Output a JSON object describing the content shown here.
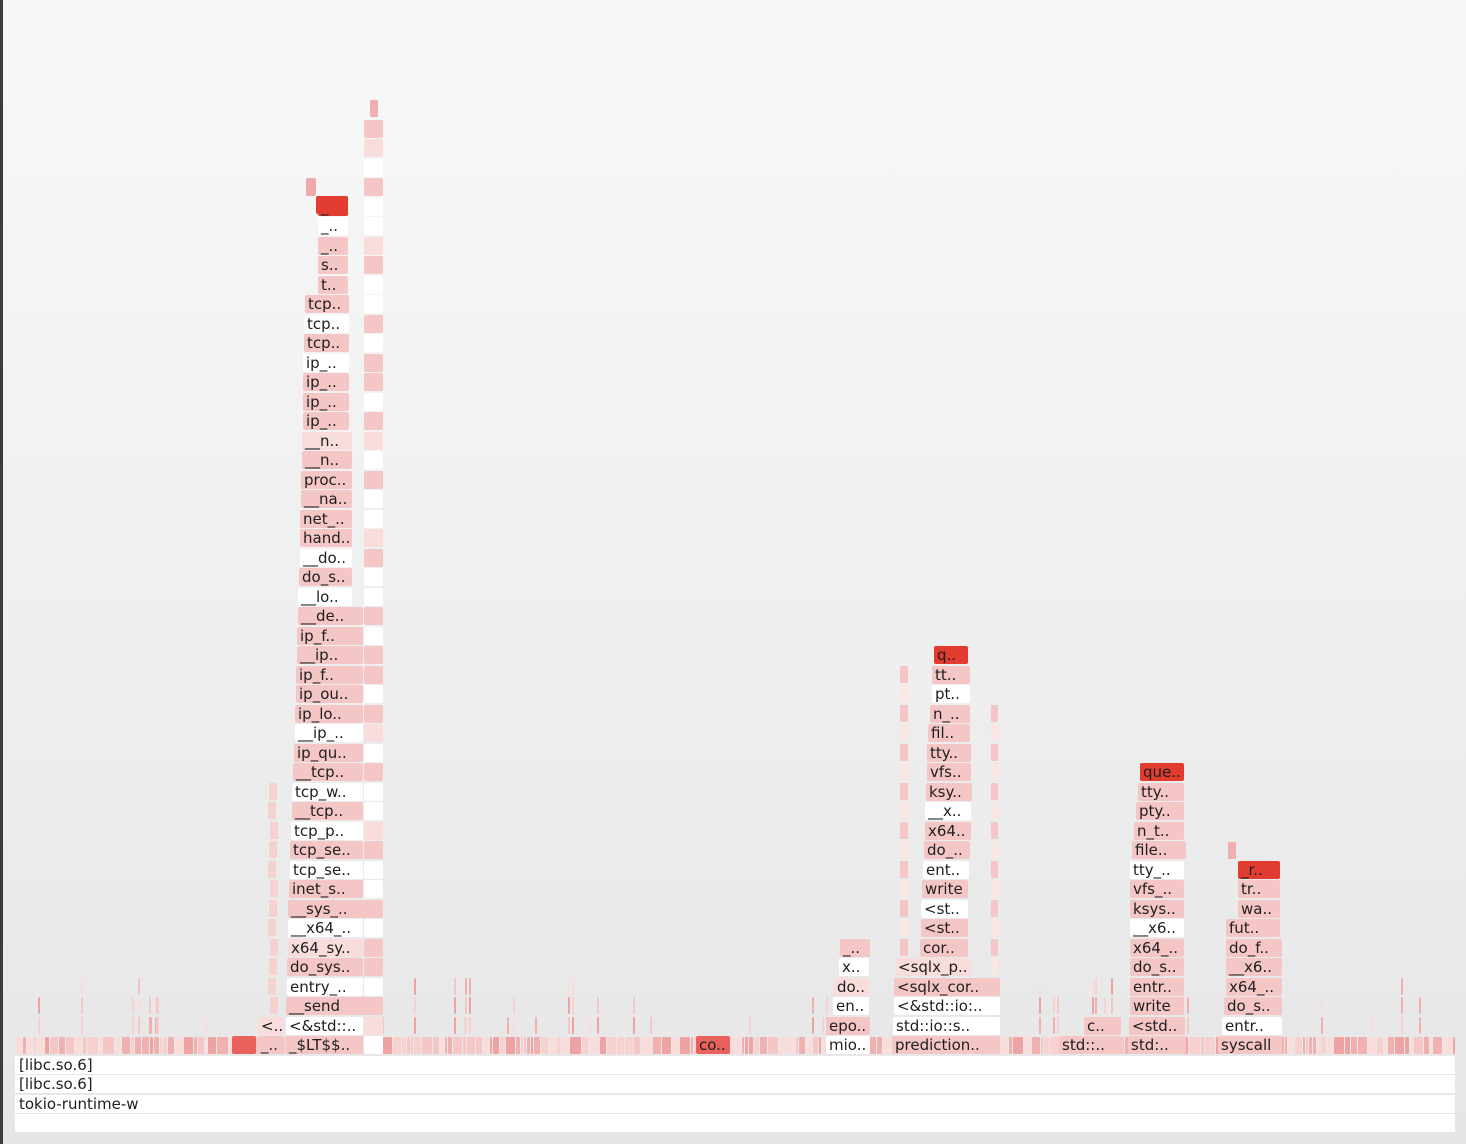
{
  "root_frames": [
    {
      "label": "[libc.so.6]"
    },
    {
      "label": "[libc.so.6]"
    },
    {
      "label": "tokio-runtime-w"
    },
    {
      "label": ""
    }
  ],
  "colors": {
    "white": "#ffffff",
    "pale": "#f9dcdc",
    "light": "#f5c6c6",
    "mid": "#eeaaaa",
    "hot": "#e8615d",
    "red": "#e23c30"
  },
  "stacks": {
    "network": [
      "_$LT$$..",
      "<&std::..",
      "__send",
      "entry_..",
      "do_sys..",
      "x64_sy..",
      "__x64_..",
      "__sys_..",
      "inet_s..",
      "tcp_se..",
      "tcp_se..",
      "tcp_p..",
      "__tcp..",
      "tcp_w..",
      "__tcp..",
      "ip_qu..",
      "__ip_..",
      "ip_lo..",
      "ip_ou..",
      "ip_f..",
      "__ip..",
      "ip_f..",
      "__de..",
      "__lo..",
      "do_s..",
      "__do..",
      "hand..",
      "net_..",
      "__na..",
      "proc..",
      "__n..",
      "__n..",
      "ip_..",
      "ip_..",
      "ip_..",
      "ip_..",
      "tcp..",
      "tcp..",
      "tcp..",
      "t..",
      "s..",
      "_..",
      "_..",
      "_.."
    ],
    "network_side": [
      "_..",
      "<.."
    ],
    "small_left": [
      "co.."
    ],
    "mio": [
      "mio..",
      "epo..",
      "en..",
      "do..",
      "x..",
      "_.."
    ],
    "prediction": [
      "prediction..",
      "std::io::s..",
      "<&std::io:..",
      "<sqlx_cor..",
      "<sqlx_p..",
      "cor..",
      "<st..",
      "<st..",
      "write",
      "ent..",
      "do_..",
      "x64..",
      "__x..",
      "ksy..",
      "vfs..",
      "tty..",
      "fil..",
      "n_..",
      "pt..",
      "tt..",
      "q.."
    ],
    "std_small": [
      "std::..",
      "c.."
    ],
    "write_stack": [
      "std:..",
      "<std..",
      "write",
      "entr..",
      "do_s..",
      "x64_..",
      "__x6..",
      "ksys..",
      "vfs_..",
      "tty_..",
      "file..",
      "n_t..",
      "pty..",
      "tty..",
      "que.."
    ],
    "syscall": [
      "syscall",
      "entr..",
      "do_s..",
      "x64_..",
      "__x6..",
      "do_f..",
      "fut..",
      "wa..",
      "tr..",
      "_r.."
    ]
  }
}
